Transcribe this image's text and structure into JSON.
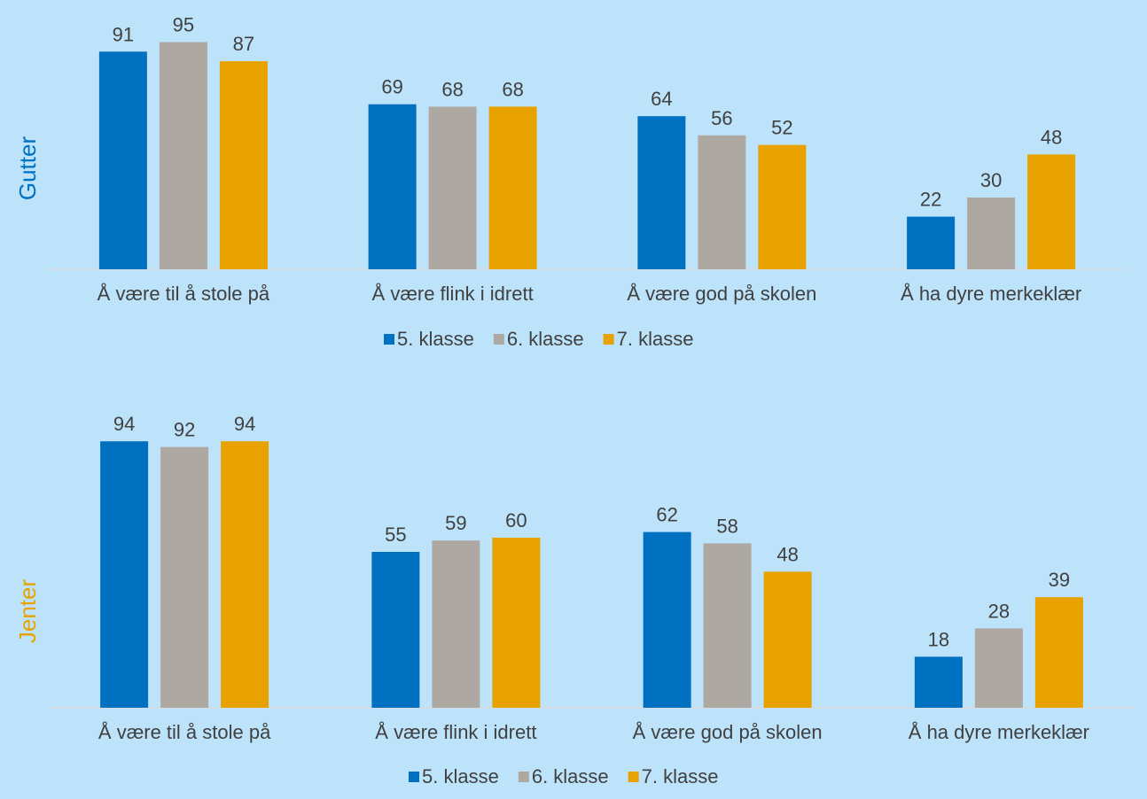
{
  "colors": {
    "background": "#bde3fb",
    "axis": "#d9d9d9",
    "text": "#404040"
  },
  "chart_data": [
    {
      "type": "bar",
      "side_label": "Gutter",
      "side_label_color": "#0070c0",
      "categories": [
        "Å være til å stole på",
        "Å være flink i idrett",
        "Å være god på skolen",
        "Å ha dyre merkeklær"
      ],
      "series": [
        {
          "name": "5. klasse",
          "color": "#0070c0",
          "values": [
            91,
            69,
            64,
            22
          ]
        },
        {
          "name": "6. klasse",
          "color": "#aea8a3",
          "values": [
            95,
            68,
            56,
            30
          ]
        },
        {
          "name": "7. klasse",
          "color": "#e8a200",
          "values": [
            87,
            68,
            52,
            48
          ]
        }
      ],
      "ylim": [
        0,
        100
      ],
      "grid": false,
      "legend": "bottom"
    },
    {
      "type": "bar",
      "side_label": "Jenter",
      "side_label_color": "#e8a200",
      "categories": [
        "Å være til å stole på",
        "Å være flink i idrett",
        "Å være god på skolen",
        "Å ha dyre merkeklær"
      ],
      "series": [
        {
          "name": "5. klasse",
          "color": "#0070c0",
          "values": [
            94,
            55,
            62,
            18
          ]
        },
        {
          "name": "6. klasse",
          "color": "#aea8a3",
          "values": [
            92,
            59,
            58,
            28
          ]
        },
        {
          "name": "7. klasse",
          "color": "#e8a200",
          "values": [
            94,
            60,
            48,
            39
          ]
        }
      ],
      "ylim": [
        0,
        100
      ],
      "grid": false,
      "legend": "bottom"
    }
  ]
}
